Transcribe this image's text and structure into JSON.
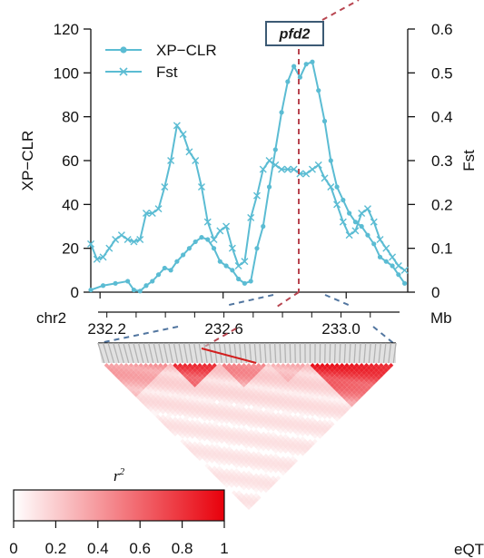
{
  "chart_data": {
    "type": "line",
    "title": "",
    "chromosome_label": "chr2",
    "x_unit_label": "Mb",
    "x_ticks": [
      "232.2",
      "232.6",
      "233.0"
    ],
    "x_tick_values": [
      232.2,
      232.6,
      233.0
    ],
    "xlim": [
      232.17,
      233.2
    ],
    "y_left_label": "XP−CLR",
    "y_left_ticks": [
      "0",
      "20",
      "40",
      "60",
      "80",
      "100",
      "120"
    ],
    "y_left_lim": [
      0,
      120
    ],
    "y_right_label": "Fst",
    "y_right_ticks": [
      "0",
      "0.1",
      "0.2",
      "0.3",
      "0.4",
      "0.5",
      "0.6"
    ],
    "y_right_lim": [
      0,
      0.6
    ],
    "gene_label": "pfd2",
    "gene_position": 232.85,
    "legend_position": "top-left",
    "series": [
      {
        "name": "XP−CLR",
        "marker": "dot",
        "color": "#5bbcd3",
        "x": [
          232.17,
          232.21,
          232.25,
          232.29,
          232.31,
          232.33,
          232.35,
          232.37,
          232.39,
          232.41,
          232.43,
          232.45,
          232.47,
          232.49,
          232.51,
          232.53,
          232.55,
          232.57,
          232.59,
          232.61,
          232.63,
          232.65,
          232.67,
          232.69,
          232.71,
          232.73,
          232.75,
          232.77,
          232.79,
          232.81,
          232.83,
          232.85,
          232.87,
          232.89,
          232.91,
          232.93,
          232.95,
          232.97,
          232.99,
          233.01,
          233.03,
          233.05,
          233.07,
          233.09,
          233.11,
          233.13,
          233.15,
          233.17,
          233.19
        ],
        "y": [
          1,
          3,
          4,
          5,
          1,
          0.5,
          3,
          5,
          8,
          11,
          10,
          14,
          17,
          20,
          23,
          25,
          24,
          20,
          14,
          12,
          10,
          6,
          4,
          5,
          20,
          30,
          48,
          65,
          82,
          96,
          103,
          98,
          104,
          105,
          92,
          78,
          60,
          48,
          42,
          36,
          32,
          30,
          26,
          22,
          16,
          14,
          12,
          8,
          4
        ]
      },
      {
        "name": "Fst",
        "marker": "cross",
        "color": "#5bbcd3",
        "x": [
          232.17,
          232.19,
          232.21,
          232.23,
          232.25,
          232.27,
          232.29,
          232.31,
          232.33,
          232.35,
          232.37,
          232.39,
          232.41,
          232.43,
          232.45,
          232.47,
          232.49,
          232.51,
          232.53,
          232.55,
          232.57,
          232.59,
          232.61,
          232.63,
          232.65,
          232.67,
          232.69,
          232.71,
          232.73,
          232.75,
          232.77,
          232.79,
          232.81,
          232.83,
          232.85,
          232.87,
          232.89,
          232.91,
          232.93,
          232.95,
          232.97,
          232.99,
          233.01,
          233.03,
          233.05,
          233.07,
          233.09,
          233.11,
          233.13,
          233.15,
          233.17,
          233.19
        ],
        "y": [
          0.11,
          0.075,
          0.08,
          0.1,
          0.12,
          0.13,
          0.12,
          0.115,
          0.12,
          0.18,
          0.18,
          0.19,
          0.24,
          0.3,
          0.38,
          0.36,
          0.32,
          0.3,
          0.24,
          0.16,
          0.12,
          0.14,
          0.15,
          0.1,
          0.06,
          0.07,
          0.17,
          0.22,
          0.28,
          0.3,
          0.29,
          0.28,
          0.28,
          0.28,
          0.27,
          0.27,
          0.28,
          0.29,
          0.26,
          0.24,
          0.2,
          0.16,
          0.13,
          0.14,
          0.18,
          0.19,
          0.16,
          0.12,
          0.1,
          0.08,
          0.06,
          0.05
        ]
      }
    ]
  },
  "ld": {
    "legend_title": "r²",
    "scale_ticks": [
      "0",
      "0.2",
      "0.4",
      "0.6",
      "0.8",
      "1"
    ],
    "scale_range": [
      0,
      1
    ],
    "low_color": "#ffffff",
    "high_color": "#e8000b"
  },
  "corner_text": "eQT"
}
